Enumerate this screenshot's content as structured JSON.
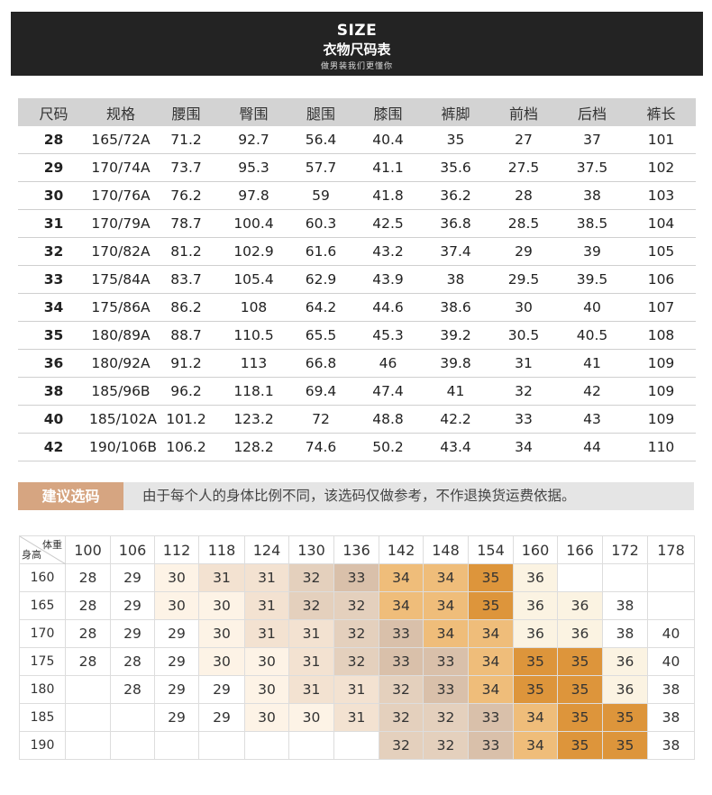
{
  "header": {
    "title_en": "SIZE",
    "title_cn": "衣物尺码表",
    "tagline": "做男装我们更懂你"
  },
  "size_table": {
    "columns": [
      "尺码",
      "规格",
      "腰围",
      "臀围",
      "腿围",
      "膝围",
      "裤脚",
      "前档",
      "后档",
      "裤长"
    ],
    "rows": [
      [
        "28",
        "165/72A",
        "71.2",
        "92.7",
        "56.4",
        "40.4",
        "35",
        "27",
        "37",
        "101"
      ],
      [
        "29",
        "170/74A",
        "73.7",
        "95.3",
        "57.7",
        "41.1",
        "35.6",
        "27.5",
        "37.5",
        "102"
      ],
      [
        "30",
        "170/76A",
        "76.2",
        "97.8",
        "59",
        "41.8",
        "36.2",
        "28",
        "38",
        "103"
      ],
      [
        "31",
        "170/79A",
        "78.7",
        "100.4",
        "60.3",
        "42.5",
        "36.8",
        "28.5",
        "38.5",
        "104"
      ],
      [
        "32",
        "170/82A",
        "81.2",
        "102.9",
        "61.6",
        "43.2",
        "37.4",
        "29",
        "39",
        "105"
      ],
      [
        "33",
        "175/84A",
        "83.7",
        "105.4",
        "62.9",
        "43.9",
        "38",
        "29.5",
        "39.5",
        "106"
      ],
      [
        "34",
        "175/86A",
        "86.2",
        "108",
        "64.2",
        "44.6",
        "38.6",
        "30",
        "40",
        "107"
      ],
      [
        "35",
        "180/89A",
        "88.7",
        "110.5",
        "65.5",
        "45.3",
        "39.2",
        "30.5",
        "40.5",
        "108"
      ],
      [
        "36",
        "180/92A",
        "91.2",
        "113",
        "66.8",
        "46",
        "39.8",
        "31",
        "41",
        "109"
      ],
      [
        "38",
        "185/96B",
        "96.2",
        "118.1",
        "69.4",
        "47.4",
        "41",
        "32",
        "42",
        "109"
      ],
      [
        "40",
        "185/102A",
        "101.2",
        "123.2",
        "72",
        "48.8",
        "42.2",
        "33",
        "43",
        "109"
      ],
      [
        "42",
        "190/106B",
        "106.2",
        "128.2",
        "74.6",
        "50.2",
        "43.4",
        "34",
        "44",
        "110"
      ]
    ]
  },
  "advice": {
    "label": "建议选码",
    "note": "由于每个人的身体比例不同，该选码仅做参考，不作退换货运费依据。"
  },
  "recommendation": {
    "corner_weight": "体重",
    "corner_height": "身高",
    "weights": [
      "100",
      "106",
      "112",
      "118",
      "124",
      "130",
      "136",
      "142",
      "148",
      "154",
      "160",
      "166",
      "172",
      "178"
    ],
    "rows": [
      {
        "height": "160",
        "sizes": [
          "28",
          "29",
          "30",
          "31",
          "31",
          "32",
          "33",
          "34",
          "34",
          "35",
          "36",
          "",
          "",
          ""
        ]
      },
      {
        "height": "165",
        "sizes": [
          "28",
          "29",
          "30",
          "30",
          "31",
          "32",
          "32",
          "34",
          "34",
          "35",
          "36",
          "36",
          "38",
          ""
        ]
      },
      {
        "height": "170",
        "sizes": [
          "28",
          "29",
          "29",
          "30",
          "31",
          "31",
          "32",
          "33",
          "34",
          "34",
          "36",
          "36",
          "38",
          "40"
        ]
      },
      {
        "height": "175",
        "sizes": [
          "28",
          "28",
          "29",
          "30",
          "30",
          "31",
          "32",
          "33",
          "33",
          "34",
          "35",
          "35",
          "36",
          "40"
        ]
      },
      {
        "height": "180",
        "sizes": [
          "",
          "28",
          "29",
          "29",
          "30",
          "31",
          "31",
          "32",
          "33",
          "34",
          "35",
          "35",
          "36",
          "38"
        ]
      },
      {
        "height": "185",
        "sizes": [
          "",
          "",
          "29",
          "29",
          "30",
          "30",
          "31",
          "32",
          "32",
          "33",
          "34",
          "35",
          "35",
          "38"
        ]
      },
      {
        "height": "190",
        "sizes": [
          "",
          "",
          "",
          "",
          "",
          "",
          "",
          "32",
          "32",
          "33",
          "34",
          "35",
          "35",
          "38"
        ]
      }
    ],
    "size_colors": {
      "28": "#ffffff",
      "29": "#ffffff",
      "30": "#fdf3e6",
      "31": "#f3e2d1",
      "32": "#e4d0bd",
      "33": "#d9c0aa",
      "34": "#efbd7a",
      "35": "#dd953b",
      "36": "#fbf3e2",
      "38": "#ffffff",
      "40": "#ffffff"
    }
  }
}
